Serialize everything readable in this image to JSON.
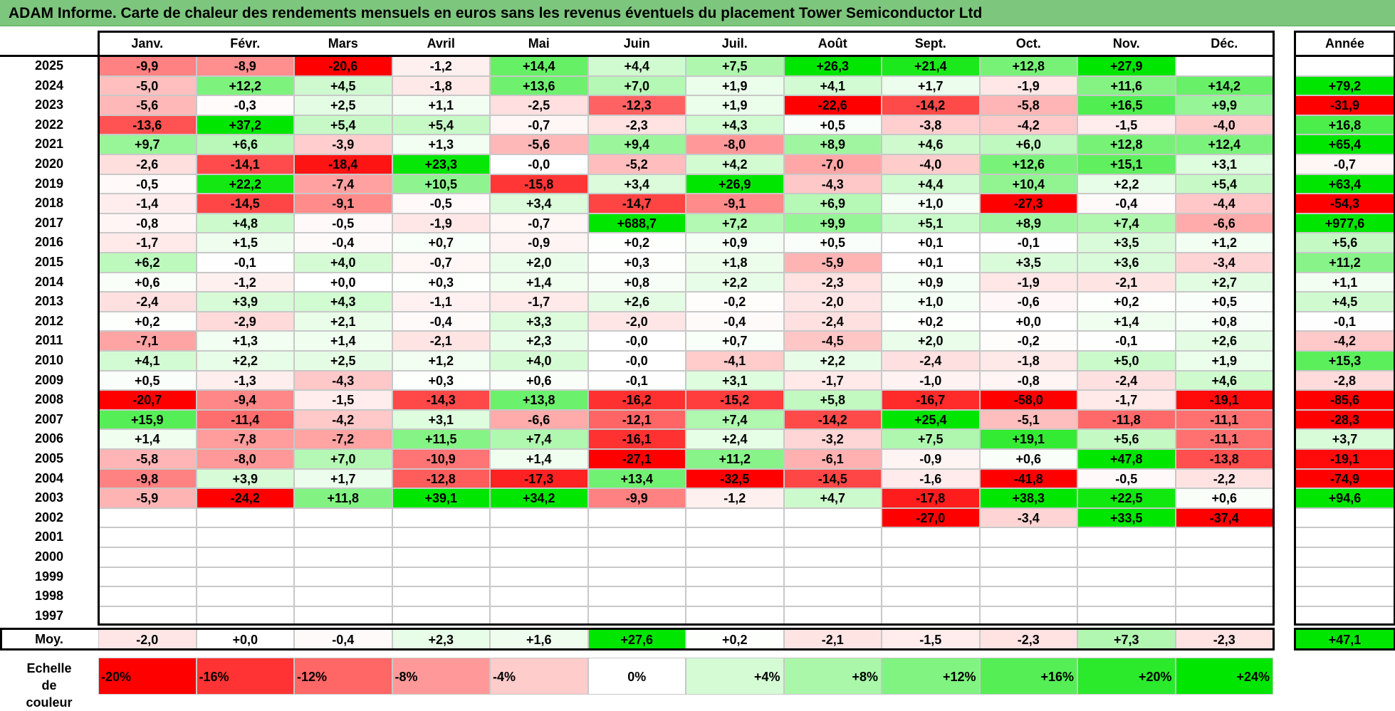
{
  "title": "ADAM Informe. Carte de chaleur des rendements mensuels en euros sans les revenus éventuels du placement Tower Semiconductor Ltd",
  "chart_data": {
    "type": "heatmap",
    "columns": [
      "Janv.",
      "Févr.",
      "Mars",
      "Avril",
      "Mai",
      "Juin",
      "Juil.",
      "Août",
      "Sept.",
      "Oct.",
      "Nov.",
      "Déc."
    ],
    "annual_header": "Année",
    "rows": [
      {
        "year": "2025",
        "months": [
          "-9,9",
          "-8,9",
          "-20,6",
          "-1,2",
          "+14,4",
          "+4,4",
          "+7,5",
          "+26,3",
          "+21,4",
          "+12,8",
          "+27,9",
          ""
        ],
        "annual": ""
      },
      {
        "year": "2024",
        "months": [
          "-5,0",
          "+12,2",
          "+4,5",
          "-1,8",
          "+13,6",
          "+7,0",
          "+1,9",
          "+4,1",
          "+1,7",
          "-1,9",
          "+11,6",
          "+14,2"
        ],
        "annual": "+79,2"
      },
      {
        "year": "2023",
        "months": [
          "-5,6",
          "-0,3",
          "+2,5",
          "+1,1",
          "-2,5",
          "-12,3",
          "+1,9",
          "-22,6",
          "-14,2",
          "-5,8",
          "+16,5",
          "+9,9"
        ],
        "annual": "-31,9"
      },
      {
        "year": "2022",
        "months": [
          "-13,6",
          "+37,2",
          "+5,4",
          "+5,4",
          "-0,7",
          "-2,3",
          "+4,3",
          "+0,5",
          "-3,8",
          "-4,2",
          "-1,5",
          "-4,0"
        ],
        "annual": "+16,8"
      },
      {
        "year": "2021",
        "months": [
          "+9,7",
          "+6,6",
          "-3,9",
          "+1,3",
          "-5,6",
          "+9,4",
          "-8,0",
          "+8,9",
          "+4,6",
          "+6,0",
          "+12,8",
          "+12,4"
        ],
        "annual": "+65,4"
      },
      {
        "year": "2020",
        "months": [
          "-2,6",
          "-14,1",
          "-18,4",
          "+23,3",
          "-0,0",
          "-5,2",
          "+4,2",
          "-7,0",
          "-4,0",
          "+12,6",
          "+15,1",
          "+3,1"
        ],
        "annual": "-0,7"
      },
      {
        "year": "2019",
        "months": [
          "-0,5",
          "+22,2",
          "-7,4",
          "+10,5",
          "-15,8",
          "+3,4",
          "+26,9",
          "-4,3",
          "+4,4",
          "+10,4",
          "+2,2",
          "+5,4"
        ],
        "annual": "+63,4"
      },
      {
        "year": "2018",
        "months": [
          "-1,4",
          "-14,5",
          "-9,1",
          "-0,5",
          "+3,4",
          "-14,7",
          "-9,1",
          "+6,9",
          "+1,0",
          "-27,3",
          "-0,4",
          "-4,4"
        ],
        "annual": "-54,3"
      },
      {
        "year": "2017",
        "months": [
          "-0,8",
          "+4,8",
          "-0,5",
          "-1,9",
          "-0,7",
          "+688,7",
          "+7,2",
          "+9,9",
          "+5,1",
          "+8,9",
          "+7,4",
          "-6,6"
        ],
        "annual": "+977,6"
      },
      {
        "year": "2016",
        "months": [
          "-1,7",
          "+1,5",
          "-0,4",
          "+0,7",
          "-0,9",
          "+0,2",
          "+0,9",
          "+0,5",
          "+0,1",
          "-0,1",
          "+3,5",
          "+1,2"
        ],
        "annual": "+5,6"
      },
      {
        "year": "2015",
        "months": [
          "+6,2",
          "-0,1",
          "+4,0",
          "-0,7",
          "+2,0",
          "+0,3",
          "+1,8",
          "-5,9",
          "+0,1",
          "+3,5",
          "+3,6",
          "-3,4"
        ],
        "annual": "+11,2"
      },
      {
        "year": "2014",
        "months": [
          "+0,6",
          "-1,2",
          "+0,0",
          "+0,3",
          "+1,4",
          "+0,8",
          "+2,2",
          "-2,3",
          "+0,9",
          "-1,9",
          "-2,1",
          "+2,7"
        ],
        "annual": "+1,1"
      },
      {
        "year": "2013",
        "months": [
          "-2,4",
          "+3,9",
          "+4,3",
          "-1,1",
          "-1,7",
          "+2,6",
          "-0,2",
          "-2,0",
          "+1,0",
          "-0,6",
          "+0,2",
          "+0,5"
        ],
        "annual": "+4,5"
      },
      {
        "year": "2012",
        "months": [
          "+0,2",
          "-2,9",
          "+2,1",
          "-0,4",
          "+3,3",
          "-2,0",
          "-0,4",
          "-2,4",
          "+0,2",
          "+0,0",
          "+1,4",
          "+0,8"
        ],
        "annual": "-0,1"
      },
      {
        "year": "2011",
        "months": [
          "-7,1",
          "+1,3",
          "+1,4",
          "-2,1",
          "+2,3",
          "-0,0",
          "+0,7",
          "-4,5",
          "+2,0",
          "-0,2",
          "-0,1",
          "+2,6"
        ],
        "annual": "-4,2"
      },
      {
        "year": "2010",
        "months": [
          "+4,1",
          "+2,2",
          "+2,5",
          "+1,2",
          "+4,0",
          "-0,0",
          "-4,1",
          "+2,2",
          "-2,4",
          "-1,8",
          "+5,0",
          "+1,9"
        ],
        "annual": "+15,3"
      },
      {
        "year": "2009",
        "months": [
          "+0,5",
          "-1,3",
          "-4,3",
          "+0,3",
          "+0,6",
          "-0,1",
          "+3,1",
          "-1,7",
          "-1,0",
          "-0,8",
          "-2,4",
          "+4,6"
        ],
        "annual": "-2,8"
      },
      {
        "year": "2008",
        "months": [
          "-20,7",
          "-9,4",
          "-1,5",
          "-14,3",
          "+13,8",
          "-16,2",
          "-15,2",
          "+5,8",
          "-16,7",
          "-58,0",
          "-1,7",
          "-19,1"
        ],
        "annual": "-85,6"
      },
      {
        "year": "2007",
        "months": [
          "+15,9",
          "-11,4",
          "-4,2",
          "+3,1",
          "-6,6",
          "-12,1",
          "+7,4",
          "-14,2",
          "+25,4",
          "-5,1",
          "-11,8",
          "-11,1"
        ],
        "annual": "-28,3"
      },
      {
        "year": "2006",
        "months": [
          "+1,4",
          "-7,8",
          "-7,2",
          "+11,5",
          "+7,4",
          "-16,1",
          "+2,4",
          "-3,2",
          "+7,5",
          "+19,1",
          "+5,6",
          "-11,1"
        ],
        "annual": "+3,7"
      },
      {
        "year": "2005",
        "months": [
          "-5,8",
          "-8,0",
          "+7,0",
          "-10,9",
          "+1,4",
          "-27,1",
          "+11,2",
          "-6,1",
          "-0,9",
          "+0,6",
          "+47,8",
          "-13,8"
        ],
        "annual": "-19,1"
      },
      {
        "year": "2004",
        "months": [
          "-9,8",
          "+3,9",
          "+1,7",
          "-12,8",
          "-17,3",
          "+13,4",
          "-32,5",
          "-14,5",
          "-1,6",
          "-41,8",
          "-0,5",
          "-2,2"
        ],
        "annual": "-74,9"
      },
      {
        "year": "2003",
        "months": [
          "-5,9",
          "-24,2",
          "+11,8",
          "+39,1",
          "+34,2",
          "-9,9",
          "-1,2",
          "+4,7",
          "-17,8",
          "+38,3",
          "+22,5",
          "+0,6"
        ],
        "annual": "+94,6"
      },
      {
        "year": "2002",
        "months": [
          "",
          "",
          "",
          "",
          "",
          "",
          "",
          "",
          "-27,0",
          "-3,4",
          "+33,5",
          "-37,4"
        ],
        "annual": ""
      },
      {
        "year": "2001",
        "months": [
          "",
          "",
          "",
          "",
          "",
          "",
          "",
          "",
          "",
          "",
          "",
          ""
        ],
        "annual": ""
      },
      {
        "year": "2000",
        "months": [
          "",
          "",
          "",
          "",
          "",
          "",
          "",
          "",
          "",
          "",
          "",
          ""
        ],
        "annual": ""
      },
      {
        "year": "1999",
        "months": [
          "",
          "",
          "",
          "",
          "",
          "",
          "",
          "",
          "",
          "",
          "",
          ""
        ],
        "annual": ""
      },
      {
        "year": "1998",
        "months": [
          "",
          "",
          "",
          "",
          "",
          "",
          "",
          "",
          "",
          "",
          "",
          ""
        ],
        "annual": ""
      },
      {
        "year": "1997",
        "months": [
          "",
          "",
          "",
          "",
          "",
          "",
          "",
          "",
          "",
          "",
          "",
          ""
        ],
        "annual": ""
      }
    ],
    "average": {
      "label": "Moy.",
      "months": [
        "-2,0",
        "+0,0",
        "-0,4",
        "+2,3",
        "+1,6",
        "+27,6",
        "+0,2",
        "-2,1",
        "-1,5",
        "-2,3",
        "+7,3",
        "-2,3"
      ],
      "annual": "+47,1"
    },
    "color_scale": {
      "label": "Echelle de couleur",
      "stops": [
        "-20%",
        "-16%",
        "-12%",
        "-8%",
        "-4%",
        "0%",
        "+4%",
        "+8%",
        "+12%",
        "+16%",
        "+20%",
        "+24%"
      ],
      "stop_values": [
        -20,
        -16,
        -12,
        -8,
        -4,
        0,
        4,
        8,
        12,
        16,
        20,
        24
      ],
      "negative_color": "#ff0000",
      "positive_color": "#00e600",
      "neutral_color": "#ffffff"
    }
  }
}
